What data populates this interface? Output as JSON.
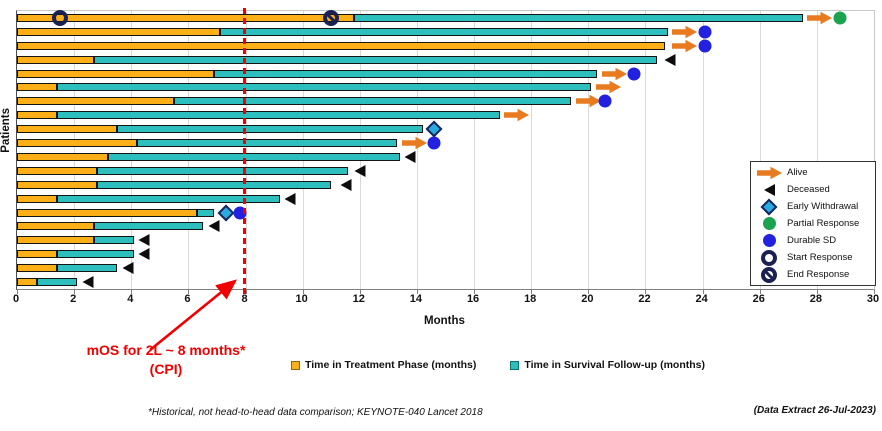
{
  "chart_data": {
    "type": "bar",
    "subtype": "swimmer-plot",
    "title": "",
    "xlabel": "Months",
    "ylabel": "Patients",
    "xlim": [
      0,
      30
    ],
    "xticks": [
      0,
      2,
      4,
      6,
      8,
      10,
      12,
      14,
      16,
      18,
      20,
      22,
      24,
      26,
      28,
      30
    ],
    "grid": "vertical-light-gray",
    "reference_line": {
      "x": 8,
      "style": "dashed",
      "color": "#FF0000"
    },
    "series_legend": [
      {
        "name": "treatment",
        "label": "Time in Treatment Phase (months)",
        "color": "#FCAF17"
      },
      {
        "name": "followup",
        "label": "Time in Survival Follow-up (months)",
        "color": "#2DBEBE"
      }
    ],
    "marker_legend": [
      {
        "type": "alive",
        "label": "Alive",
        "color": "#E87B1F"
      },
      {
        "type": "deceased",
        "label": "Deceased",
        "color": "#0d0d0d"
      },
      {
        "type": "early-withdrawal",
        "label": "Early Withdrawal",
        "color": "#29ABE2"
      },
      {
        "type": "partial-response",
        "label": "Partial Response",
        "color": "#1CA352"
      },
      {
        "type": "durable-sd",
        "label": "Durable SD",
        "color": "#2121DF"
      },
      {
        "type": "start-response",
        "label": "Start Response",
        "color": "#1b2153"
      },
      {
        "type": "end-response",
        "label": "End Response",
        "color": "#1b2153"
      }
    ],
    "patients": [
      {
        "treatment": 11.8,
        "survival": 27.5,
        "markers": [
          {
            "type": "start-response",
            "x": 1.5
          },
          {
            "type": "end-response",
            "x": 11.0
          },
          {
            "type": "alive",
            "x": 27.7
          },
          {
            "type": "partial-response",
            "x": 28.8
          }
        ]
      },
      {
        "treatment": 7.1,
        "survival": 22.8,
        "markers": [
          {
            "type": "alive",
            "x": 22.95
          },
          {
            "type": "durable-sd",
            "x": 24.1
          }
        ]
      },
      {
        "treatment": 22.7,
        "survival": 22.7,
        "markers": [
          {
            "type": "alive",
            "x": 22.95
          },
          {
            "type": "durable-sd",
            "x": 24.1
          }
        ]
      },
      {
        "treatment": 2.7,
        "survival": 22.4,
        "markers": [
          {
            "type": "deceased",
            "x": 22.85
          }
        ]
      },
      {
        "treatment": 6.9,
        "survival": 20.3,
        "markers": [
          {
            "type": "alive",
            "x": 20.5
          },
          {
            "type": "durable-sd",
            "x": 21.6
          }
        ]
      },
      {
        "treatment": 1.4,
        "survival": 20.1,
        "markers": [
          {
            "type": "alive",
            "x": 20.3
          }
        ]
      },
      {
        "treatment": 5.5,
        "survival": 19.4,
        "markers": [
          {
            "type": "alive",
            "x": 19.6
          },
          {
            "type": "durable-sd",
            "x": 20.6
          }
        ]
      },
      {
        "treatment": 1.4,
        "survival": 16.9,
        "markers": [
          {
            "type": "alive",
            "x": 17.1
          }
        ]
      },
      {
        "treatment": 3.5,
        "survival": 14.2,
        "markers": [
          {
            "type": "early-withdrawal",
            "x": 14.6
          }
        ]
      },
      {
        "treatment": 4.2,
        "survival": 13.3,
        "markers": [
          {
            "type": "alive",
            "x": 13.5
          },
          {
            "type": "durable-sd",
            "x": 14.6
          }
        ]
      },
      {
        "treatment": 3.2,
        "survival": 13.4,
        "markers": [
          {
            "type": "deceased",
            "x": 13.75
          }
        ]
      },
      {
        "treatment": 2.8,
        "survival": 11.6,
        "markers": [
          {
            "type": "deceased",
            "x": 12.0
          }
        ]
      },
      {
        "treatment": 2.8,
        "survival": 11.0,
        "markers": [
          {
            "type": "deceased",
            "x": 11.5
          }
        ]
      },
      {
        "treatment": 1.4,
        "survival": 9.2,
        "markers": [
          {
            "type": "deceased",
            "x": 9.55
          }
        ]
      },
      {
        "treatment": 6.3,
        "survival": 6.9,
        "markers": [
          {
            "type": "early-withdrawal",
            "x": 7.3
          },
          {
            "type": "durable-sd",
            "x": 7.8
          }
        ]
      },
      {
        "treatment": 2.7,
        "survival": 6.5,
        "markers": [
          {
            "type": "deceased",
            "x": 6.9
          }
        ]
      },
      {
        "treatment": 2.7,
        "survival": 4.1,
        "markers": [
          {
            "type": "deceased",
            "x": 4.45
          }
        ]
      },
      {
        "treatment": 1.4,
        "survival": 4.1,
        "markers": [
          {
            "type": "deceased",
            "x": 4.45
          }
        ]
      },
      {
        "treatment": 1.4,
        "survival": 3.5,
        "markers": [
          {
            "type": "deceased",
            "x": 3.9
          }
        ]
      },
      {
        "treatment": 0.7,
        "survival": 2.1,
        "markers": [
          {
            "type": "deceased",
            "x": 2.5
          }
        ]
      }
    ]
  },
  "annotation": {
    "line1": "mOS for 2L ~ 8 months*",
    "line2": "(CPI)",
    "color": "#FF0000"
  },
  "footnote": "*Historical, not head-to-head data comparison; KEYNOTE-040 Lancet 2018",
  "data_extract": "(Data Extract 26-Jul-2023)",
  "colors": {
    "treatment_bar": "#FCAF17",
    "followup_bar": "#2DBEBE",
    "alive_arrow": "#E87B1F",
    "durable_sd": "#2121DF",
    "partial_response": "#1CA352",
    "early_withdrawal": "#29ABE2",
    "response_ring": "#1b2153",
    "reference_red": "#FF0000",
    "gridline": "#d9d9d9"
  }
}
